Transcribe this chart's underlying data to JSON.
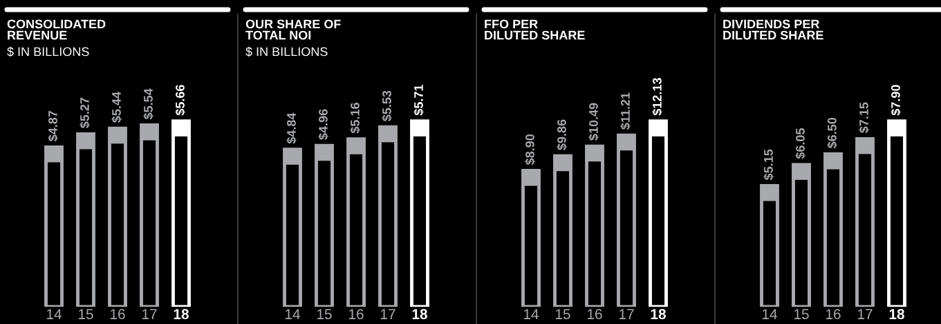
{
  "chart_data": [
    {
      "type": "bar",
      "title": "CONSOLIDATED\nREVENUE",
      "subtitle": "$ IN BILLIONS",
      "categories": [
        "14",
        "15",
        "16",
        "17",
        "18"
      ],
      "values": [
        4.87,
        5.27,
        5.44,
        5.54,
        5.66
      ],
      "colors": [
        "#a7a9ac",
        "#a7a9ac",
        "#a7a9ac",
        "#a7a9ac",
        "#ffffff"
      ],
      "value_labels": [
        "$4.87",
        "$5.27",
        "$5.44",
        "$5.54",
        "$5.66"
      ]
    },
    {
      "type": "bar",
      "title": "OUR SHARE OF\nTOTAL NOI",
      "subtitle": "$ IN BILLIONS",
      "categories": [
        "14",
        "15",
        "16",
        "17",
        "18"
      ],
      "values": [
        4.84,
        4.96,
        5.16,
        5.53,
        5.71
      ],
      "colors": [
        "#a7a9ac",
        "#a7a9ac",
        "#a7a9ac",
        "#a7a9ac",
        "#ffffff"
      ],
      "value_labels": [
        "$4.84",
        "$4.96",
        "$5.16",
        "$5.53",
        "$5.71"
      ]
    },
    {
      "type": "bar",
      "title": "FFO PER\nDILUTED SHARE",
      "categories": [
        "14",
        "15",
        "16",
        "17",
        "18"
      ],
      "values": [
        8.9,
        9.86,
        10.49,
        11.21,
        12.13
      ],
      "colors": [
        "#a7a9ac",
        "#a7a9ac",
        "#a7a9ac",
        "#a7a9ac",
        "#ffffff"
      ],
      "value_labels": [
        "$8.90",
        "$9.86",
        "$10.49",
        "$11.21",
        "$12.13"
      ]
    },
    {
      "type": "bar",
      "title": "DIVIDENDS PER\nDILUTED SHARE",
      "categories": [
        "14",
        "15",
        "16",
        "17",
        "18"
      ],
      "values": [
        5.15,
        6.05,
        6.5,
        7.15,
        7.9
      ],
      "colors": [
        "#a7a9ac",
        "#a7a9ac",
        "#a7a9ac",
        "#a7a9ac",
        "#ffffff"
      ],
      "value_labels": [
        "$5.15",
        "$6.05",
        "$6.50",
        "$7.15",
        "$7.90"
      ]
    }
  ]
}
